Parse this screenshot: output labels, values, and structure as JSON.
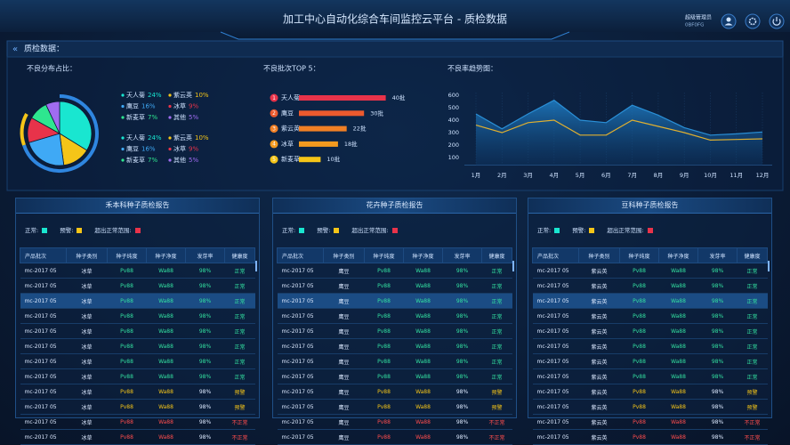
{
  "header": {
    "title": "加工中心自动化综合车间监控云平台 - 质检数据",
    "user_name": "超级管理员",
    "user_id": "0BF0FG"
  },
  "section_title": "质检数据：",
  "chart_data": [
    {
      "type": "pie",
      "title": "不良分布占比：",
      "categories": [
        "天人菊",
        "紫云英",
        "鹰豆",
        "冰草",
        "新麦草",
        "其他"
      ],
      "values": [
        24,
        10,
        16,
        9,
        7,
        5
      ],
      "value_labels": [
        "24%",
        "10%",
        "16%",
        "9%",
        "7%",
        "5%"
      ],
      "colors": [
        "#19e6d0",
        "#f5c518",
        "#3fa9f5",
        "#e8334a",
        "#2ee68f",
        "#a06cf0"
      ]
    },
    {
      "type": "hbar",
      "title": "不良批次TOP 5：",
      "ranks": [
        1,
        2,
        3,
        4,
        5
      ],
      "categories": [
        "天人菊",
        "鹰豆",
        "紫云英",
        "冰草",
        "新麦草"
      ],
      "values": [
        40,
        30,
        22,
        18,
        10
      ],
      "value_labels": [
        "40批",
        "30批",
        "22批",
        "18批",
        "10批"
      ],
      "colors": [
        "#e8334a",
        "#ec5a2e",
        "#f07f25",
        "#f39a1f",
        "#f5c518"
      ],
      "xlim": [
        0,
        50
      ]
    },
    {
      "type": "area",
      "title": "不良率趋势图：",
      "categories": [
        "1月",
        "2月",
        "3月",
        "4月",
        "5月",
        "6月",
        "7月",
        "8月",
        "9月",
        "10月",
        "11月",
        "12月"
      ],
      "series": [
        {
          "color": "#2a8fd6",
          "values": [
            450,
            330,
            450,
            560,
            400,
            380,
            520,
            440,
            340,
            280,
            290,
            305
          ]
        },
        {
          "color": "#e0b030",
          "values": [
            360,
            300,
            380,
            400,
            280,
            280,
            400,
            350,
            300,
            240,
            245,
            250
          ]
        }
      ],
      "ylim": [
        40,
        620
      ],
      "yticks": [
        100,
        200,
        300,
        400,
        500,
        600
      ]
    }
  ],
  "tables": [
    {
      "title": "禾本科种子质检报告",
      "legend": [
        {
          "label": "正常:",
          "color": "#19e6d0"
        },
        {
          "label": "预警:",
          "color": "#f5c518"
        },
        {
          "label": "超出正常范围:",
          "color": "#e8334a"
        }
      ],
      "columns": [
        "产品批次",
        "种子类别",
        "种子纯度",
        "种子净度",
        "发芽率",
        "健康度"
      ],
      "rows": [
        [
          "mc-2017 05",
          "冰草",
          "Pv88",
          "Wa88",
          "98%",
          "正常"
        ],
        [
          "mc-2017 05",
          "冰草",
          "Pv88",
          "Wa88",
          "98%",
          "正常"
        ],
        [
          "mc-2017 05",
          "冰草",
          "Pv88",
          "Wa88",
          "98%",
          "正常"
        ],
        [
          "mc-2017 05",
          "冰草",
          "Pv88",
          "Wa88",
          "98%",
          "正常"
        ],
        [
          "mc-2017 05",
          "冰草",
          "Pv88",
          "Wa88",
          "98%",
          "正常"
        ],
        [
          "mc-2017 05",
          "冰草",
          "Pv88",
          "Wa88",
          "98%",
          "正常"
        ],
        [
          "mc-2017 05",
          "冰草",
          "Pv88",
          "Wa88",
          "98%",
          "正常"
        ],
        [
          "mc-2017 05",
          "冰草",
          "Pv88",
          "Wa88",
          "98%",
          "正常"
        ],
        [
          "mc-2017 05",
          "冰草",
          "Pv88",
          "Wa88",
          "98%",
          "预警"
        ],
        [
          "mc-2017 05",
          "冰草",
          "Pv88",
          "Wa88",
          "98%",
          "预警"
        ],
        [
          "mc-2017 05",
          "冰草",
          "Pv88",
          "Wa88",
          "98%",
          "不正常"
        ],
        [
          "mc-2017 05",
          "冰草",
          "Pv88",
          "Wa88",
          "98%",
          "不正常"
        ]
      ],
      "row_colors": [
        "#33e0a0",
        "#33e0a0",
        "#33e0a0",
        "#33e0a0",
        "#33e0a0",
        "#33e0a0",
        "#33e0a0",
        "#33e0a0",
        "#f5c518",
        "#f5c518",
        "#ff4d4d",
        "#ff4d4d"
      ]
    },
    {
      "title": "花卉种子质检报告",
      "legend": [
        {
          "label": "正常:",
          "color": "#19e6d0"
        },
        {
          "label": "预警:",
          "color": "#f5c518"
        },
        {
          "label": "超出正常范围:",
          "color": "#e8334a"
        }
      ],
      "columns": [
        "产品批次",
        "种子类别",
        "种子纯度",
        "种子净度",
        "发芽率",
        "健康度"
      ],
      "rows": [
        [
          "mc-2017 05",
          "鹰豆",
          "Pv88",
          "Wa88",
          "98%",
          "正常"
        ],
        [
          "mc-2017 05",
          "鹰豆",
          "Pv88",
          "Wa88",
          "98%",
          "正常"
        ],
        [
          "mc-2017 05",
          "鹰豆",
          "Pv88",
          "Wa88",
          "98%",
          "正常"
        ],
        [
          "mc-2017 05",
          "鹰豆",
          "Pv88",
          "Wa88",
          "98%",
          "正常"
        ],
        [
          "mc-2017 05",
          "鹰豆",
          "Pv88",
          "Wa88",
          "98%",
          "正常"
        ],
        [
          "mc-2017 05",
          "鹰豆",
          "Pv88",
          "Wa88",
          "98%",
          "正常"
        ],
        [
          "mc-2017 05",
          "鹰豆",
          "Pv88",
          "Wa88",
          "98%",
          "正常"
        ],
        [
          "mc-2017 05",
          "鹰豆",
          "Pv88",
          "Wa88",
          "98%",
          "正常"
        ],
        [
          "mc-2017 05",
          "鹰豆",
          "Pv88",
          "Wa88",
          "98%",
          "预警"
        ],
        [
          "mc-2017 05",
          "鹰豆",
          "Pv88",
          "Wa88",
          "98%",
          "预警"
        ],
        [
          "mc-2017 05",
          "鹰豆",
          "Pv88",
          "Wa88",
          "98%",
          "不正常"
        ],
        [
          "mc-2017 05",
          "鹰豆",
          "Pv88",
          "Wa88",
          "98%",
          "不正常"
        ]
      ],
      "row_colors": [
        "#33e0a0",
        "#33e0a0",
        "#33e0a0",
        "#33e0a0",
        "#33e0a0",
        "#33e0a0",
        "#33e0a0",
        "#33e0a0",
        "#f5c518",
        "#f5c518",
        "#ff4d4d",
        "#ff4d4d"
      ]
    },
    {
      "title": "豆科种子质检报告",
      "legend": [
        {
          "label": "正常:",
          "color": "#19e6d0"
        },
        {
          "label": "预警:",
          "color": "#f5c518"
        },
        {
          "label": "超出正常范围:",
          "color": "#e8334a"
        }
      ],
      "columns": [
        "产品批次",
        "种子类别",
        "种子纯度",
        "种子净度",
        "发芽率",
        "健康度"
      ],
      "rows": [
        [
          "mc-2017 05",
          "紫云英",
          "Pv88",
          "Wa88",
          "98%",
          "正常"
        ],
        [
          "mc-2017 05",
          "紫云英",
          "Pv88",
          "Wa88",
          "98%",
          "正常"
        ],
        [
          "mc-2017 05",
          "紫云英",
          "Pv88",
          "Wa88",
          "98%",
          "正常"
        ],
        [
          "mc-2017 05",
          "紫云英",
          "Pv88",
          "Wa88",
          "98%",
          "正常"
        ],
        [
          "mc-2017 05",
          "紫云英",
          "Pv88",
          "Wa88",
          "98%",
          "正常"
        ],
        [
          "mc-2017 05",
          "紫云英",
          "Pv88",
          "Wa88",
          "98%",
          "正常"
        ],
        [
          "mc-2017 05",
          "紫云英",
          "Pv88",
          "Wa88",
          "98%",
          "正常"
        ],
        [
          "mc-2017 05",
          "紫云英",
          "Pv88",
          "Wa88",
          "98%",
          "正常"
        ],
        [
          "mc-2017 05",
          "紫云英",
          "Pv88",
          "Wa88",
          "98%",
          "预警"
        ],
        [
          "mc-2017 05",
          "紫云英",
          "Pv88",
          "Wa88",
          "98%",
          "预警"
        ],
        [
          "mc-2017 05",
          "紫云英",
          "Pv88",
          "Wa88",
          "98%",
          "不正常"
        ],
        [
          "mc-2017 05",
          "紫云英",
          "Pv88",
          "Wa88",
          "98%",
          "不正常"
        ]
      ],
      "row_colors": [
        "#33e0a0",
        "#33e0a0",
        "#33e0a0",
        "#33e0a0",
        "#33e0a0",
        "#33e0a0",
        "#33e0a0",
        "#33e0a0",
        "#f5c518",
        "#f5c518",
        "#ff4d4d",
        "#ff4d4d"
      ]
    }
  ]
}
